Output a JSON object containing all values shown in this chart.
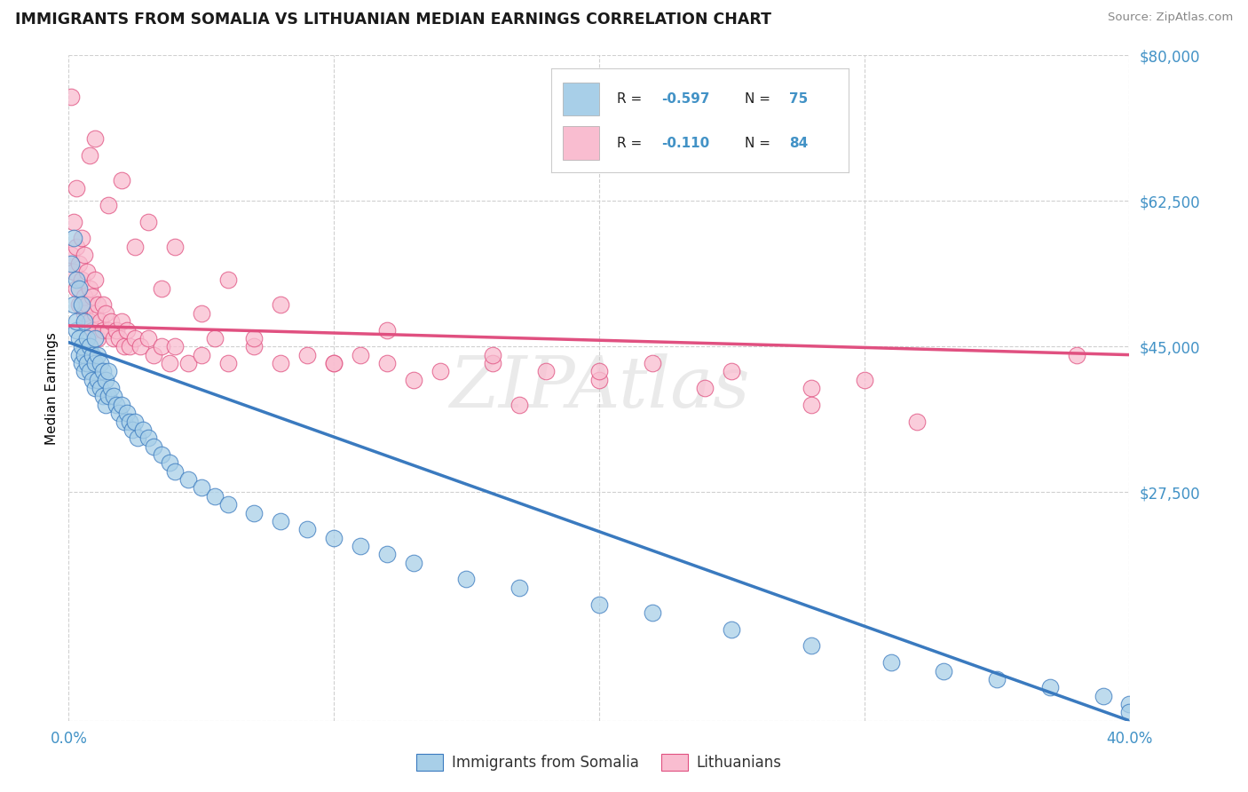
{
  "title": "IMMIGRANTS FROM SOMALIA VS LITHUANIAN MEDIAN EARNINGS CORRELATION CHART",
  "source_text": "Source: ZipAtlas.com",
  "ylabel": "Median Earnings",
  "xlim": [
    0.0,
    0.4
  ],
  "ylim": [
    0,
    80000
  ],
  "yticks": [
    0,
    27500,
    45000,
    62500,
    80000
  ],
  "ytick_labels": [
    "",
    "$27,500",
    "$45,000",
    "$62,500",
    "$80,000"
  ],
  "xtick_labels": [
    "0.0%",
    "",
    "",
    "",
    "40.0%"
  ],
  "xticks": [
    0.0,
    0.1,
    0.2,
    0.3,
    0.4
  ],
  "background_color": "#ffffff",
  "grid_color": "#d0d0d0",
  "color_somalia": "#a8cfe8",
  "color_somalia_line": "#3a7abf",
  "color_lithuanian": "#f9bdd0",
  "color_lithuanian_line": "#e05080",
  "color_tick_labels": "#4292c6",
  "somalia_x": [
    0.001,
    0.002,
    0.002,
    0.003,
    0.003,
    0.003,
    0.004,
    0.004,
    0.004,
    0.005,
    0.005,
    0.005,
    0.006,
    0.006,
    0.006,
    0.007,
    0.007,
    0.008,
    0.008,
    0.009,
    0.009,
    0.01,
    0.01,
    0.01,
    0.011,
    0.011,
    0.012,
    0.012,
    0.013,
    0.013,
    0.014,
    0.014,
    0.015,
    0.015,
    0.016,
    0.017,
    0.018,
    0.019,
    0.02,
    0.021,
    0.022,
    0.023,
    0.024,
    0.025,
    0.026,
    0.028,
    0.03,
    0.032,
    0.035,
    0.038,
    0.04,
    0.045,
    0.05,
    0.055,
    0.06,
    0.07,
    0.08,
    0.09,
    0.1,
    0.11,
    0.12,
    0.13,
    0.15,
    0.17,
    0.2,
    0.22,
    0.25,
    0.28,
    0.31,
    0.33,
    0.35,
    0.37,
    0.39,
    0.4,
    0.4
  ],
  "somalia_y": [
    55000,
    50000,
    58000,
    47000,
    53000,
    48000,
    52000,
    46000,
    44000,
    50000,
    45000,
    43000,
    48000,
    44000,
    42000,
    46000,
    43000,
    45000,
    42000,
    44000,
    41000,
    46000,
    43000,
    40000,
    44000,
    41000,
    43000,
    40000,
    42000,
    39000,
    41000,
    38000,
    42000,
    39000,
    40000,
    39000,
    38000,
    37000,
    38000,
    36000,
    37000,
    36000,
    35000,
    36000,
    34000,
    35000,
    34000,
    33000,
    32000,
    31000,
    30000,
    29000,
    28000,
    27000,
    26000,
    25000,
    24000,
    23000,
    22000,
    21000,
    20000,
    19000,
    17000,
    16000,
    14000,
    13000,
    11000,
    9000,
    7000,
    6000,
    5000,
    4000,
    3000,
    2000,
    1000
  ],
  "lithuanian_x": [
    0.001,
    0.002,
    0.002,
    0.003,
    0.003,
    0.004,
    0.004,
    0.005,
    0.005,
    0.006,
    0.006,
    0.006,
    0.007,
    0.007,
    0.008,
    0.008,
    0.009,
    0.009,
    0.01,
    0.01,
    0.011,
    0.011,
    0.012,
    0.013,
    0.013,
    0.014,
    0.015,
    0.016,
    0.017,
    0.018,
    0.019,
    0.02,
    0.021,
    0.022,
    0.023,
    0.025,
    0.027,
    0.03,
    0.032,
    0.035,
    0.038,
    0.04,
    0.045,
    0.05,
    0.055,
    0.06,
    0.07,
    0.08,
    0.09,
    0.1,
    0.11,
    0.12,
    0.14,
    0.16,
    0.18,
    0.2,
    0.22,
    0.25,
    0.28,
    0.3,
    0.003,
    0.008,
    0.015,
    0.025,
    0.035,
    0.05,
    0.07,
    0.1,
    0.13,
    0.17,
    0.001,
    0.01,
    0.02,
    0.03,
    0.04,
    0.06,
    0.08,
    0.12,
    0.16,
    0.2,
    0.24,
    0.28,
    0.32,
    0.38
  ],
  "lithuanian_y": [
    56000,
    54000,
    60000,
    52000,
    57000,
    55000,
    50000,
    58000,
    53000,
    56000,
    51000,
    49000,
    54000,
    50000,
    52000,
    48000,
    51000,
    47000,
    53000,
    49000,
    50000,
    46000,
    48000,
    50000,
    47000,
    49000,
    47000,
    48000,
    46000,
    47000,
    46000,
    48000,
    45000,
    47000,
    45000,
    46000,
    45000,
    46000,
    44000,
    45000,
    43000,
    45000,
    43000,
    44000,
    46000,
    43000,
    45000,
    43000,
    44000,
    43000,
    44000,
    43000,
    42000,
    43000,
    42000,
    41000,
    43000,
    42000,
    40000,
    41000,
    64000,
    68000,
    62000,
    57000,
    52000,
    49000,
    46000,
    43000,
    41000,
    38000,
    75000,
    70000,
    65000,
    60000,
    57000,
    53000,
    50000,
    47000,
    44000,
    42000,
    40000,
    38000,
    36000,
    44000
  ],
  "somalia_line_x": [
    0.0,
    0.4
  ],
  "somalia_line_y": [
    45500,
    0
  ],
  "lithuanian_line_x": [
    0.0,
    0.4
  ],
  "lithuanian_line_y": [
    47500,
    44000
  ]
}
